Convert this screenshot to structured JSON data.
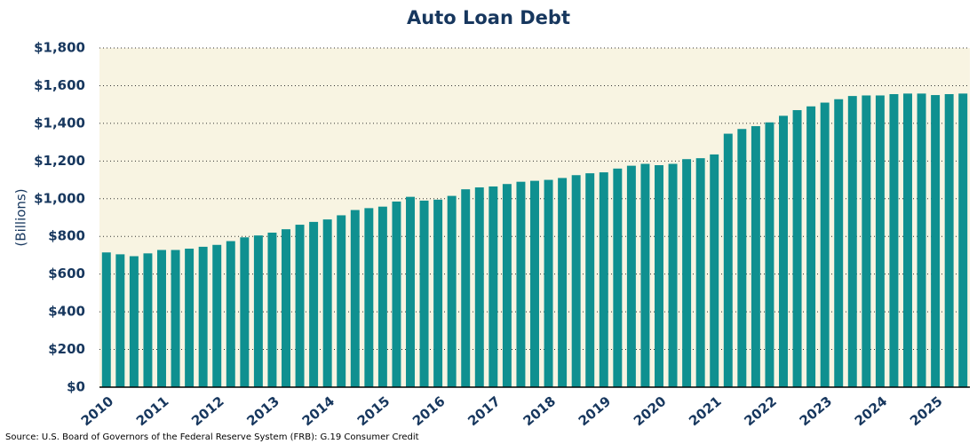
{
  "chart_data": {
    "type": "bar",
    "title": "Auto Loan Debt",
    "y_label": "(Billions)",
    "source": "Source: U.S. Board of Governors of the Federal Reserve System (FRB): G.19 Consumer Credit",
    "categories": [
      "2010",
      null,
      null,
      null,
      "2011",
      null,
      null,
      null,
      "2012",
      null,
      null,
      null,
      "2013",
      null,
      null,
      null,
      "2014",
      null,
      null,
      null,
      "2015",
      null,
      null,
      null,
      "2016",
      null,
      null,
      null,
      "2017",
      null,
      null,
      null,
      "2018",
      null,
      null,
      null,
      "2019",
      null,
      null,
      null,
      "2020",
      null,
      null,
      null,
      "2021",
      null,
      null,
      null,
      "2022",
      null,
      null,
      null,
      "2023",
      null,
      null,
      null,
      "2024",
      null,
      null,
      null,
      "2025",
      null,
      null
    ],
    "values": [
      715,
      705,
      695,
      710,
      728,
      728,
      735,
      745,
      755,
      775,
      795,
      805,
      820,
      838,
      862,
      877,
      890,
      912,
      940,
      950,
      958,
      985,
      1010,
      990,
      995,
      1015,
      1050,
      1060,
      1065,
      1078,
      1090,
      1095,
      1100,
      1110,
      1125,
      1135,
      1140,
      1160,
      1175,
      1185,
      1178,
      1185,
      1210,
      1215,
      1235,
      1345,
      1370,
      1385,
      1405,
      1440,
      1470,
      1490,
      1510,
      1528,
      1545,
      1548,
      1548,
      1555,
      1558,
      1558,
      1550,
      1555,
      1558
    ],
    "color": "#0f9090",
    "ylim": [
      0,
      1800
    ],
    "yticks": [
      {
        "value": 0,
        "label": "$0"
      },
      {
        "value": 200,
        "label": "$200"
      },
      {
        "value": 400,
        "label": "$400"
      },
      {
        "value": 600,
        "label": "$600"
      },
      {
        "value": 800,
        "label": "$800"
      },
      {
        "value": 1000,
        "label": "$1,000"
      },
      {
        "value": 1200,
        "label": "$1,200"
      },
      {
        "value": 1400,
        "label": "$1,400"
      },
      {
        "value": 1600,
        "label": "$1,600"
      },
      {
        "value": 1800,
        "label": "$1,800"
      }
    ],
    "grid": true
  }
}
